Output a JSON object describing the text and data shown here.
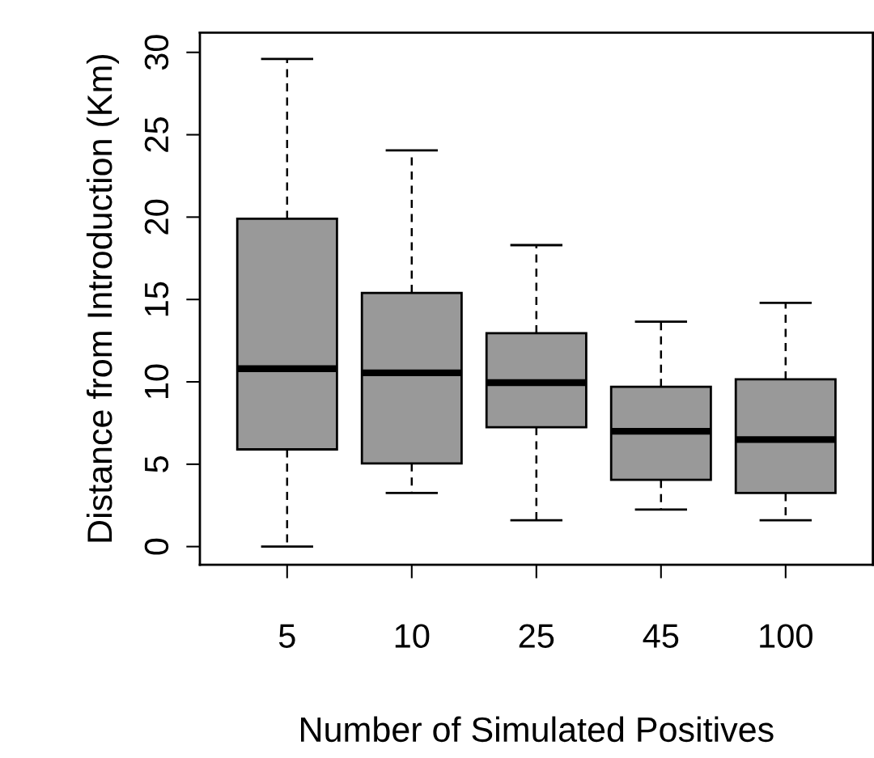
{
  "chart_data": {
    "type": "box",
    "xlabel": "Number of Simulated Positives",
    "ylabel": "Distance from Introduction (Km)",
    "categories": [
      "5",
      "10",
      "25",
      "45",
      "100"
    ],
    "boxes": [
      {
        "low": 0,
        "q1": 5.9,
        "median": 10.8,
        "q3": 19.9,
        "high": 29.6
      },
      {
        "low": 3.25,
        "q1": 5.05,
        "median": 10.55,
        "q3": 15.4,
        "high": 24.05
      },
      {
        "low": 1.6,
        "q1": 7.25,
        "median": 9.95,
        "q3": 12.95,
        "high": 18.3
      },
      {
        "low": 2.25,
        "q1": 4.05,
        "median": 7.0,
        "q3": 9.7,
        "high": 13.65
      },
      {
        "low": 1.6,
        "q1": 3.25,
        "median": 6.5,
        "q3": 10.15,
        "high": 14.8
      }
    ],
    "color": "#999999",
    "ylim": [
      -1.1,
      31.2
    ],
    "yticks": [
      0,
      5,
      10,
      15,
      20,
      25,
      30
    ],
    "grid": false
  }
}
